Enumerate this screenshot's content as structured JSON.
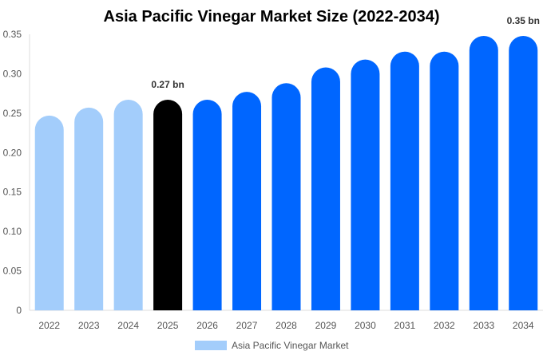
{
  "chart_data": {
    "type": "bar",
    "title": "Asia Pacific Vinegar Market Size (2022-2034)",
    "xlabel": "",
    "ylabel": "",
    "categories": [
      "2022",
      "2023",
      "2024",
      "2025",
      "2026",
      "2027",
      "2028",
      "2029",
      "2030",
      "2031",
      "2032",
      "2033",
      "2034"
    ],
    "series": [
      {
        "name": "Asia Pacific Vinegar Market",
        "values": [
          0.247,
          0.257,
          0.267,
          0.267,
          0.267,
          0.277,
          0.288,
          0.308,
          0.318,
          0.328,
          0.328,
          0.348,
          0.348
        ]
      }
    ],
    "ylim": [
      0,
      0.35
    ],
    "yticks": [
      0,
      0.05,
      0.1,
      0.15,
      0.2,
      0.25,
      0.3,
      0.35
    ],
    "ytick_labels": [
      "0",
      "0.05",
      "0.10",
      "0.15",
      "0.20",
      "0.25",
      "0.30",
      "0.35"
    ],
    "data_labels": [
      {
        "category": "2025",
        "text": "0.27 bn"
      },
      {
        "category": "2034",
        "text": "0.35 bn"
      }
    ],
    "bar_colors": {
      "historical": "#a3cdfb",
      "base_year": "#000000",
      "forecast": "#0066ff"
    },
    "bar_color_groups": [
      "historical",
      "historical",
      "historical",
      "base_year",
      "forecast",
      "forecast",
      "forecast",
      "forecast",
      "forecast",
      "forecast",
      "forecast",
      "forecast",
      "forecast"
    ],
    "legend": {
      "position": "bottom",
      "swatch_color": "#a3cdfb"
    },
    "grid": false
  }
}
